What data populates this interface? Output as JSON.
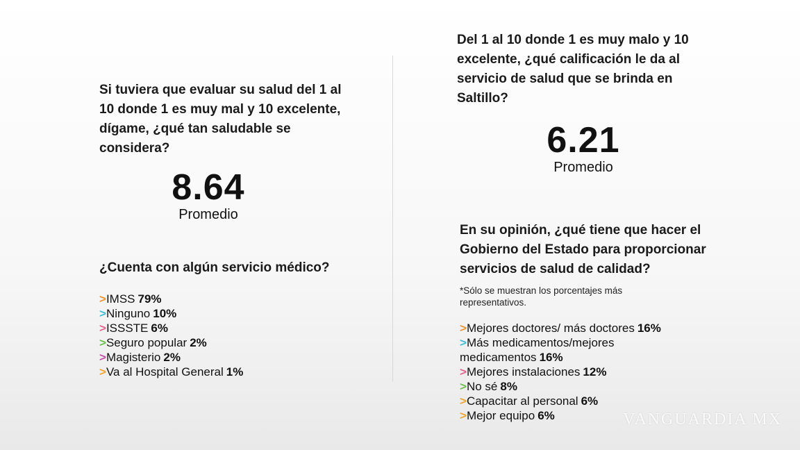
{
  "left": {
    "question": "Si tuviera que evaluar su salud del 1 al 10 donde 1 es muy mal y 10 excelente, dígame, ¿qué tan saludable se considera?",
    "average": "8.64",
    "average_label": "Promedio",
    "list_title": "¿Cuenta con algún servicio médico?",
    "items": [
      {
        "marker": ">",
        "color": "#f0912a",
        "label": "IMSS",
        "value": "79%"
      },
      {
        "marker": ">",
        "color": "#3bbfd6",
        "label": "Ninguno",
        "value": "10%"
      },
      {
        "marker": ">",
        "color": "#e9608a",
        "label": "ISSSTE",
        "value": "6%"
      },
      {
        "marker": ">",
        "color": "#6cc04a",
        "label": "Seguro popular",
        "value": "2%"
      },
      {
        "marker": ">",
        "color": "#c84aa8",
        "label": "Magisterio",
        "value": "2%"
      },
      {
        "marker": ">",
        "color": "#f0a52a",
        "label": "Va al Hospital General",
        "value": "1%"
      }
    ]
  },
  "right": {
    "question": "Del 1 al 10 donde 1 es muy malo y 10 excelente, ¿qué calificación le da al servicio de salud que se brinda en Saltillo?",
    "average": "6.21",
    "average_label": "Promedio",
    "list_title": "En su opinión, ¿qué tiene que hacer el Gobierno del Estado para proporcionar servicios de salud de calidad?",
    "note": "*Sólo se muestran los porcentajes más representativos.",
    "items": [
      {
        "marker": ">",
        "color": "#f0912a",
        "label": "Mejores doctores/ más doctores",
        "value": "16%"
      },
      {
        "marker": ">",
        "color": "#3bbfd6",
        "label": "Más medicamentos/mejores medicamentos",
        "value": "16%"
      },
      {
        "marker": ">",
        "color": "#e9608a",
        "label": "Mejores instalaciones",
        "value": "12%"
      },
      {
        "marker": ">",
        "color": "#6cc04a",
        "label": "No sé",
        "value": "8%"
      },
      {
        "marker": ">",
        "color": "#f0a52a",
        "label": "Capacitar al personal",
        "value": "6%"
      },
      {
        "marker": ">",
        "color": "#f0a52a",
        "label": "Mejor equipo",
        "value": "6%"
      }
    ]
  },
  "watermark": "VANGUARDIA MX"
}
